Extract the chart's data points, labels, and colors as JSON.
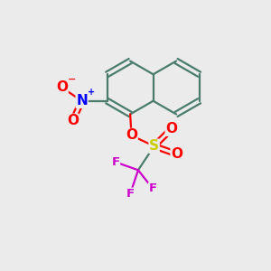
{
  "bg_color": "#ebebeb",
  "bond_color": "#4a7c6e",
  "bond_width": 1.6,
  "atom_colors": {
    "O": "#ff0000",
    "N": "#0000ff",
    "S": "#cccc00",
    "F": "#cc00cc",
    "C": "#4a7c6e"
  },
  "font_size_atom": 11,
  "font_size_small": 9.5,
  "xlim": [
    0,
    10
  ],
  "ylim": [
    0,
    10
  ]
}
